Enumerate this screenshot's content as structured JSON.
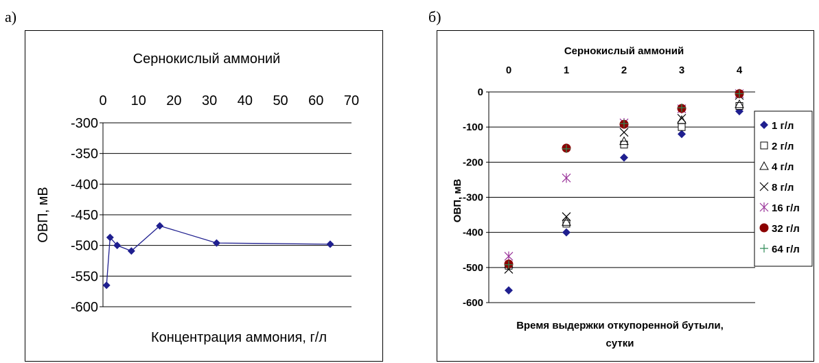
{
  "labels": {
    "left": "а)",
    "right": "б)"
  },
  "chart_data": [
    {
      "type": "line",
      "title": "Сернокислый аммоний",
      "xlabel": "Концентрация аммония, г/л",
      "ylabel": "ОВП, мВ",
      "x_axis_position": "top",
      "xlim": [
        0,
        70
      ],
      "ylim": [
        -600,
        -300
      ],
      "xticks": [
        "0",
        "10",
        "20",
        "30",
        "40",
        "50",
        "60",
        "70"
      ],
      "yticks": [
        "-300",
        "-350",
        "-400",
        "-450",
        "-500",
        "-550",
        "-600"
      ],
      "grid": "horizontal",
      "color": "#1F1F8F",
      "series": [
        {
          "x": [
            1,
            2,
            4,
            8,
            16,
            32,
            64
          ],
          "y": [
            -565,
            -487,
            -500,
            -509,
            -468,
            -496,
            -498
          ]
        }
      ]
    },
    {
      "type": "scatter",
      "title": "Сернокислый аммоний",
      "xlabel": "Время выдержки откупоренной бутыли, сутки",
      "ylabel": "ОВП, мВ",
      "x_axis_position": "top",
      "xlim": [
        0,
        4
      ],
      "ylim": [
        -600,
        0
      ],
      "xticks": [
        "0",
        "1",
        "2",
        "3",
        "4"
      ],
      "yticks": [
        "0",
        "-100",
        "-200",
        "-300",
        "-400",
        "-500",
        "-600"
      ],
      "grid": "horizontal",
      "legend_position": "right",
      "series": [
        {
          "name": "1 г/л",
          "marker": "diamond",
          "color": "#1F1F8F",
          "x": [
            0,
            1,
            2,
            3,
            4
          ],
          "y": [
            -565,
            -400,
            -187,
            -120,
            -55
          ]
        },
        {
          "name": "2 г/л",
          "marker": "square",
          "color": "#000000",
          "x": [
            0,
            1,
            2,
            3,
            4
          ],
          "y": [
            -495,
            -375,
            -150,
            -100,
            -40
          ]
        },
        {
          "name": "4 г/л",
          "marker": "triangle",
          "color": "#000000",
          "x": [
            0,
            1,
            2,
            3,
            4
          ],
          "y": [
            -490,
            -370,
            -140,
            -80,
            -35
          ]
        },
        {
          "name": "8 г/л",
          "marker": "x",
          "color": "#000000",
          "x": [
            0,
            1,
            2,
            3,
            4
          ],
          "y": [
            -505,
            -355,
            -115,
            -75,
            -10
          ]
        },
        {
          "name": "16 г/л",
          "marker": "star",
          "color": "#993399",
          "x": [
            0,
            1,
            2,
            3,
            4
          ],
          "y": [
            -468,
            -245,
            -88,
            -48,
            -5
          ]
        },
        {
          "name": "32 г/л",
          "marker": "circle",
          "color": "#8B0000",
          "x": [
            0,
            1,
            2,
            3,
            4
          ],
          "y": [
            -490,
            -160,
            -92,
            -47,
            -5
          ]
        },
        {
          "name": "64 г/л",
          "marker": "plus",
          "color": "#2E8B57",
          "x": [
            0,
            1,
            2,
            3,
            4
          ],
          "y": [
            -492,
            -162,
            -90,
            -45,
            -5
          ]
        }
      ]
    }
  ]
}
